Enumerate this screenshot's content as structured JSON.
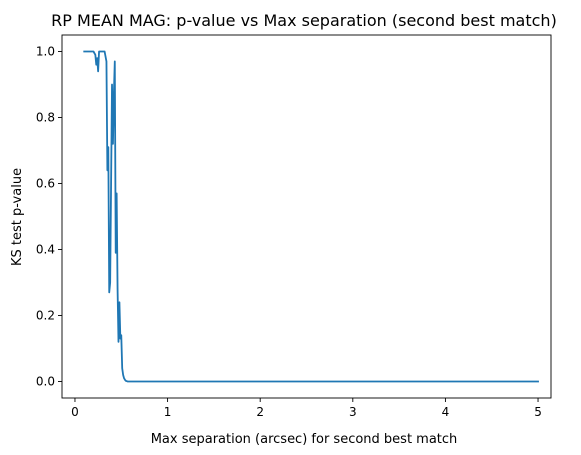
{
  "chart_data": {
    "type": "line",
    "title": "RP MEAN MAG: p-value vs Max separation (second best match)",
    "xlabel": "Max separation (arcsec) for second best match",
    "ylabel": "KS test p-value",
    "xlim": [
      -0.14,
      5.14
    ],
    "ylim": [
      -0.05,
      1.05
    ],
    "xticks": [
      0,
      1,
      2,
      3,
      4,
      5
    ],
    "yticks": [
      0.0,
      0.2,
      0.4,
      0.6,
      0.8,
      1.0
    ],
    "xtick_labels": [
      "0",
      "1",
      "2",
      "3",
      "4",
      "5"
    ],
    "ytick_labels": [
      "0.0",
      "0.2",
      "0.4",
      "0.6",
      "0.8",
      "1.0"
    ],
    "grid": false,
    "series": [
      {
        "color": "#1f77b4",
        "x": [
          0.1,
          0.15,
          0.2,
          0.22,
          0.23,
          0.24,
          0.25,
          0.26,
          0.27,
          0.28,
          0.3,
          0.32,
          0.34,
          0.35,
          0.36,
          0.37,
          0.38,
          0.39,
          0.4,
          0.41,
          0.42,
          0.43,
          0.44,
          0.45,
          0.46,
          0.47,
          0.48,
          0.49,
          0.5,
          0.51,
          0.52,
          0.53,
          0.54,
          0.55,
          0.56,
          0.57,
          0.58,
          0.6,
          0.65,
          0.7,
          1.0,
          2.0,
          3.0,
          4.0,
          5.0
        ],
        "y": [
          1.0,
          1.0,
          1.0,
          0.99,
          0.96,
          0.98,
          0.94,
          1.0,
          1.0,
          1.0,
          1.0,
          1.0,
          0.97,
          0.64,
          0.71,
          0.27,
          0.3,
          0.6,
          0.9,
          0.72,
          0.87,
          0.97,
          0.39,
          0.57,
          0.28,
          0.12,
          0.24,
          0.13,
          0.14,
          0.04,
          0.02,
          0.01,
          0.005,
          0.002,
          0.001,
          0.0,
          0.0,
          0.0,
          0.0,
          0.0,
          0.0,
          0.0,
          0.0,
          0.0,
          0.0
        ]
      }
    ]
  }
}
